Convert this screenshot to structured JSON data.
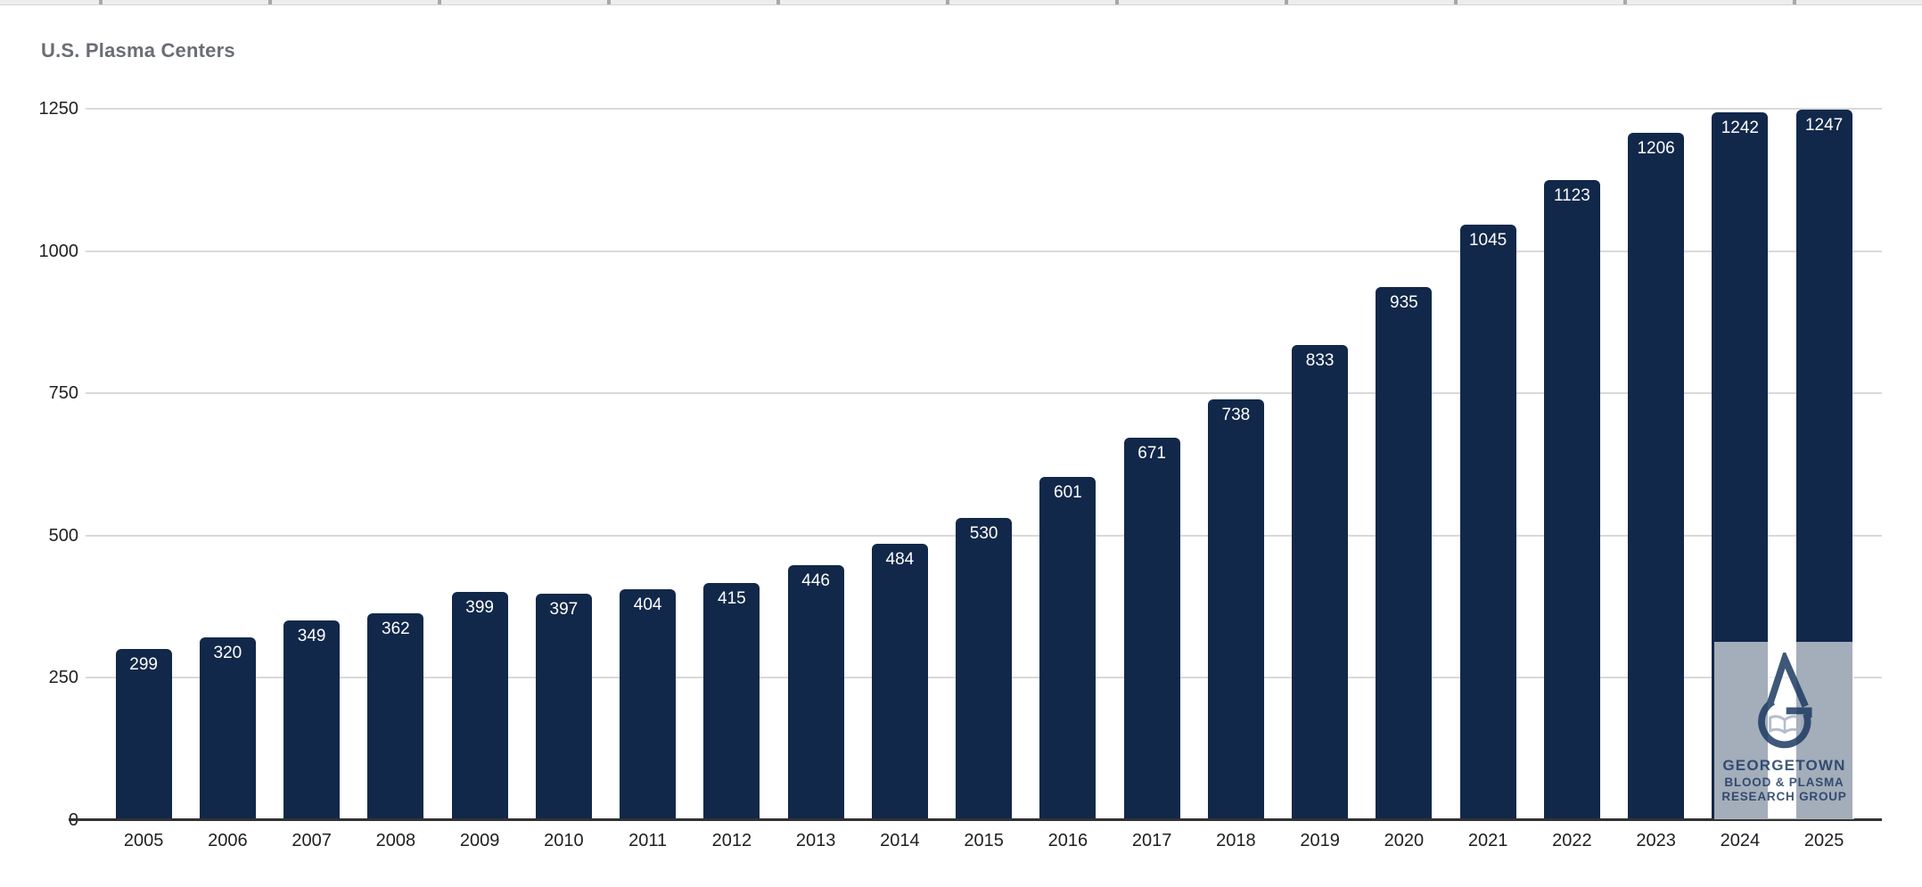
{
  "chart_data": {
    "type": "bar",
    "title": "U.S. Plasma Centers",
    "categories": [
      "2005",
      "2006",
      "2007",
      "2008",
      "2009",
      "2010",
      "2011",
      "2012",
      "2013",
      "2014",
      "2015",
      "2016",
      "2017",
      "2018",
      "2019",
      "2020",
      "2021",
      "2022",
      "2023",
      "2024",
      "2025"
    ],
    "values": [
      299,
      320,
      349,
      362,
      399,
      397,
      404,
      415,
      446,
      484,
      530,
      601,
      671,
      738,
      833,
      935,
      1045,
      1123,
      1206,
      1242,
      1247
    ],
    "series_name": "U.S. Plasma Centers",
    "xlabel": "",
    "ylabel": "",
    "y_ticks": [
      0,
      250,
      500,
      750,
      1000,
      1250
    ],
    "ylim": [
      0,
      1250
    ],
    "grid": true,
    "legend": "none",
    "value_labels": "inside-top",
    "bar_color": "#12284A",
    "value_label_color": "#FFFFFF",
    "gridline_color": "#D9D9D9",
    "axis_line_color": "#333333",
    "title_color": "#6A6E74"
  },
  "watermark": {
    "icon": "droplet-g-open-book-logo",
    "lines": [
      "GEORGETOWN",
      "BLOOD & PLASMA",
      "RESEARCH GROUP"
    ],
    "logo_color": "#1D3B63"
  }
}
